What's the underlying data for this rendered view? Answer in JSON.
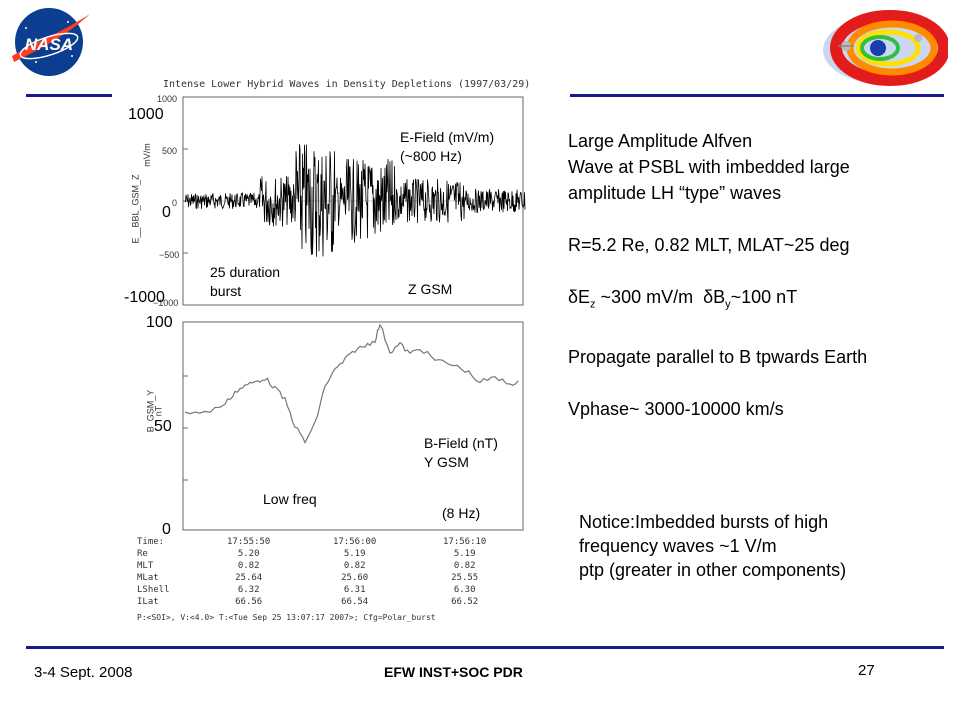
{
  "slide": {
    "plot_title": "Intense Lower Hybrid Waves in Density Depletions (1997/03/29)",
    "panel1": {
      "yticks_large": [
        "1000",
        "0",
        "-1000"
      ],
      "yticks_small": [
        "1000",
        "500",
        "0",
        "−500",
        "−1000"
      ],
      "ylabel": "E__BBL_GSM_Z",
      "yunit": "mV/m",
      "label_field": "E-Field (mV/m)",
      "label_freq": "(~800 Hz)",
      "label_burst_1": "25 duration",
      "label_burst_2": "burst",
      "label_axis": "Z GSM"
    },
    "panel2": {
      "yticks_large": [
        "100",
        "50",
        "0"
      ],
      "ylabel": "B_GSM_Y",
      "yunit": "nT",
      "label_field": "B-Field (nT)",
      "label_axis": "Y GSM",
      "label_freq": "(8 Hz)",
      "label_lowfreq": "Low freq"
    },
    "time_table": {
      "row_labels": [
        "Time:",
        "Re",
        "MLT",
        "MLat",
        "LShell",
        "ILat"
      ],
      "col1": [
        "17:55:50",
        "5.20",
        "0.82",
        "25.64",
        "6.32",
        "66.56"
      ],
      "col2": [
        "17:56:00",
        "5.19",
        "0.82",
        "25.60",
        "6.31",
        "66.54"
      ],
      "col3": [
        "17:56:10",
        "5.19",
        "0.82",
        "25.55",
        "6.30",
        "66.52"
      ],
      "footer": "P:<SOI>, V:<4.0> T:<Tue Sep 25 13:07:17 2007>;   Cfg=Polar_burst"
    },
    "right_text": {
      "line1": "Large Amplitude Alfven",
      "line2": "Wave at PSBL with imbedded large",
      "line3": "amplitude LH “type” waves",
      "line4": "R=5.2 Re, 0.82 MLT, MLAT~25 deg",
      "delta": "δ",
      "e_sym": "E",
      "e_sub": "z",
      "e_val": " ~300 mV/m  ",
      "b_sym": "B",
      "b_sub": "y",
      "b_val": "~100 nT",
      "line6": "Propagate parallel to B tpwards Earth",
      "line7": "Vphase~ 3000-10000 km/s"
    },
    "notice": {
      "line1": "Notice:Imbedded bursts of high",
      "line2": "frequency waves ~1 V/m",
      "line3": "ptp (greater in other components)"
    },
    "footer": {
      "date": "3-4 Sept. 2008",
      "center": "EFW INST+SOC PDR",
      "page": "27"
    },
    "logo": {
      "text": "NASA"
    },
    "colors": {
      "rule": "#1a1a8c",
      "nasa_blue": "#0b3d91",
      "nasa_red": "#fc3d21"
    }
  }
}
